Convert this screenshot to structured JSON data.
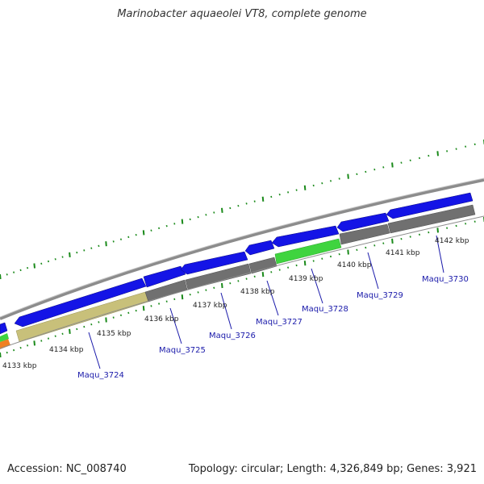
{
  "title": "Marinobacter aquaeolei VT8, complete genome",
  "footer": {
    "accession": "Accession: NC_008740",
    "summary": "Topology: circular; Length: 4,326,849 bp; Genes: 3,921"
  },
  "colors": {
    "backbone": "#8c8c8c",
    "tick": "#1a8a1a",
    "gene_forward": "#1414e6",
    "cds_gray": "#707070",
    "cds_khaki": "#c8c07a",
    "cds_green": "#3fd43f",
    "gene_label": "#1a1aaa",
    "coord_label": "#222222"
  },
  "coordinate_labels": [
    {
      "text": "4133 kbp"
    },
    {
      "text": "4134 kbp"
    },
    {
      "text": "4135 kbp"
    },
    {
      "text": "4136 kbp"
    },
    {
      "text": "4137 kbp"
    },
    {
      "text": "4138 kbp"
    },
    {
      "text": "4139 kbp"
    },
    {
      "text": "4140 kbp"
    },
    {
      "text": "4141 kbp"
    },
    {
      "text": "4142 kbp"
    }
  ],
  "gene_labels": [
    {
      "text": "Maqu_3724"
    },
    {
      "text": "Maqu_3725"
    },
    {
      "text": "Maqu_3726"
    },
    {
      "text": "Maqu_3727"
    },
    {
      "text": "Maqu_3728"
    },
    {
      "text": "Maqu_3729"
    },
    {
      "text": "Maqu_3730"
    }
  ]
}
